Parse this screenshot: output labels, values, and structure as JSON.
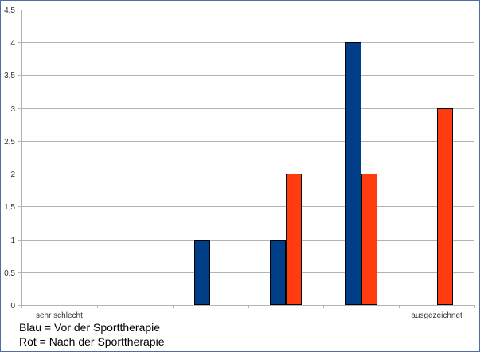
{
  "chart_data": {
    "type": "bar",
    "categories": [
      "sehr schlecht",
      "",
      "",
      "",
      "",
      "ausgezeichnet"
    ],
    "series": [
      {
        "values": [
          0,
          0,
          1,
          1,
          4,
          0
        ],
        "color": "#003f87"
      },
      {
        "values": [
          0,
          0,
          0,
          2,
          2,
          3
        ],
        "color": "#ff3b10"
      }
    ],
    "ylim": [
      0,
      4.5
    ],
    "yticks": [
      0,
      0.5,
      1,
      1.5,
      2,
      2.5,
      3,
      3.5,
      4,
      4.5
    ],
    "ytick_labels": [
      "0",
      "0,5",
      "1",
      "1,5",
      "2",
      "2,5",
      "3",
      "3,5",
      "4",
      "4,5"
    ],
    "grid": true,
    "gridline_color": "#b3b3b3"
  },
  "legend": {
    "line1": "Blau = Vor der Sporttherapie",
    "line2": "Rot = Nach der Sporttherapie"
  }
}
